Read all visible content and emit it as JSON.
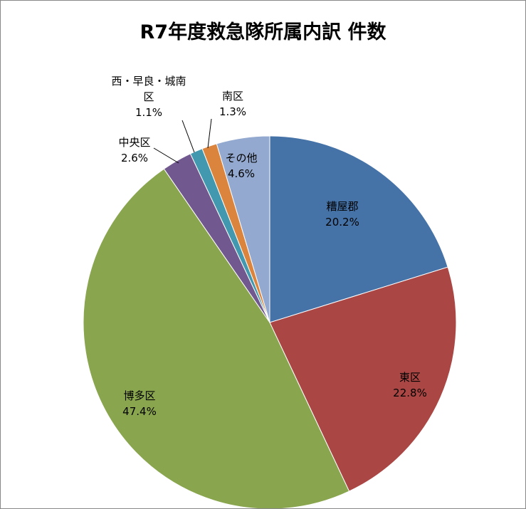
{
  "chart_data": {
    "type": "pie",
    "title": "R7年度救急隊所属内訳 件数",
    "categories": [
      "糟屋郡",
      "東区",
      "博多区",
      "中央区",
      "西・早良・城南区",
      "南区",
      "その他"
    ],
    "values": [
      20.2,
      22.8,
      47.4,
      2.6,
      1.1,
      1.3,
      4.6
    ],
    "value_labels": [
      "20.2%",
      "22.8%",
      "47.4%",
      "2.6%",
      "1.1%",
      "1.3%",
      "4.6%"
    ],
    "colors": [
      "#4572a7",
      "#aa4643",
      "#89a54e",
      "#71588f",
      "#4198af",
      "#db843d",
      "#93a9cf"
    ]
  }
}
